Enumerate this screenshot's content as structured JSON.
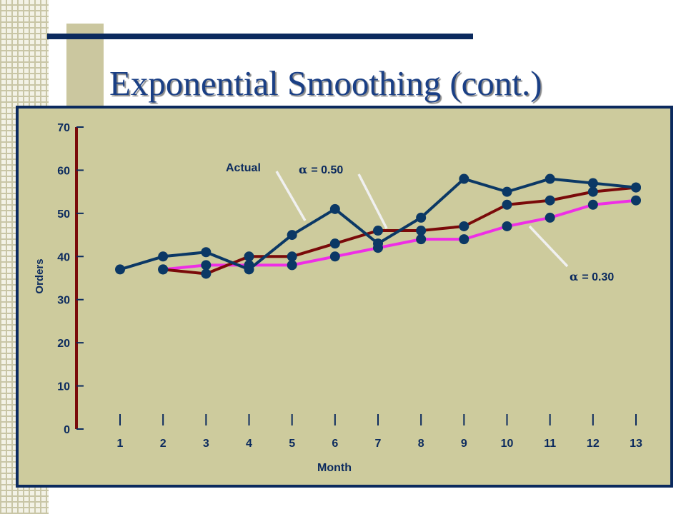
{
  "slide": {
    "title": "Exponential Smoothing (cont.)"
  },
  "colors": {
    "actual": "#0b3865",
    "alpha_050": "#7a0a0a",
    "alpha_030": "#ee2ee6",
    "panel": "#cdcb9d",
    "text": "#0b2a5e"
  },
  "chart_data": {
    "type": "line",
    "xlabel": "Month",
    "ylabel": "Orders",
    "ylim": [
      0,
      70
    ],
    "y_ticks": [
      0,
      10,
      20,
      30,
      40,
      50,
      60,
      70
    ],
    "x_ticks": [
      1,
      2,
      3,
      4,
      5,
      6,
      7,
      8,
      9,
      10,
      11,
      12,
      13
    ],
    "xlim": [
      1,
      13
    ],
    "grid": false,
    "series": [
      {
        "name": "Actual",
        "months": [
          1,
          2,
          3,
          4,
          5,
          6,
          7,
          8,
          9,
          10,
          11,
          12,
          13
        ],
        "values": [
          37,
          40,
          41,
          37,
          45,
          51,
          43,
          49,
          58,
          55,
          58,
          57,
          56
        ]
      },
      {
        "name": "α = 0.50",
        "months": [
          2,
          3,
          4,
          5,
          6,
          7,
          8,
          9,
          10,
          11,
          12,
          13
        ],
        "values": [
          37,
          36,
          40,
          40,
          43,
          46,
          46,
          47,
          52,
          53,
          55,
          56
        ]
      },
      {
        "name": "α = 0.30",
        "months": [
          2,
          3,
          4,
          5,
          6,
          7,
          8,
          9,
          10,
          11,
          12,
          13
        ],
        "values": [
          37,
          38,
          38,
          38,
          40,
          42,
          44,
          44,
          47,
          49,
          52,
          53
        ]
      }
    ],
    "annotations": [
      {
        "text": "Actual",
        "series": "Actual"
      },
      {
        "text": "= 0.50",
        "symbol": "α",
        "series": "α = 0.50"
      },
      {
        "text": "= 0.30",
        "symbol": "α",
        "series": "α = 0.30"
      }
    ]
  }
}
